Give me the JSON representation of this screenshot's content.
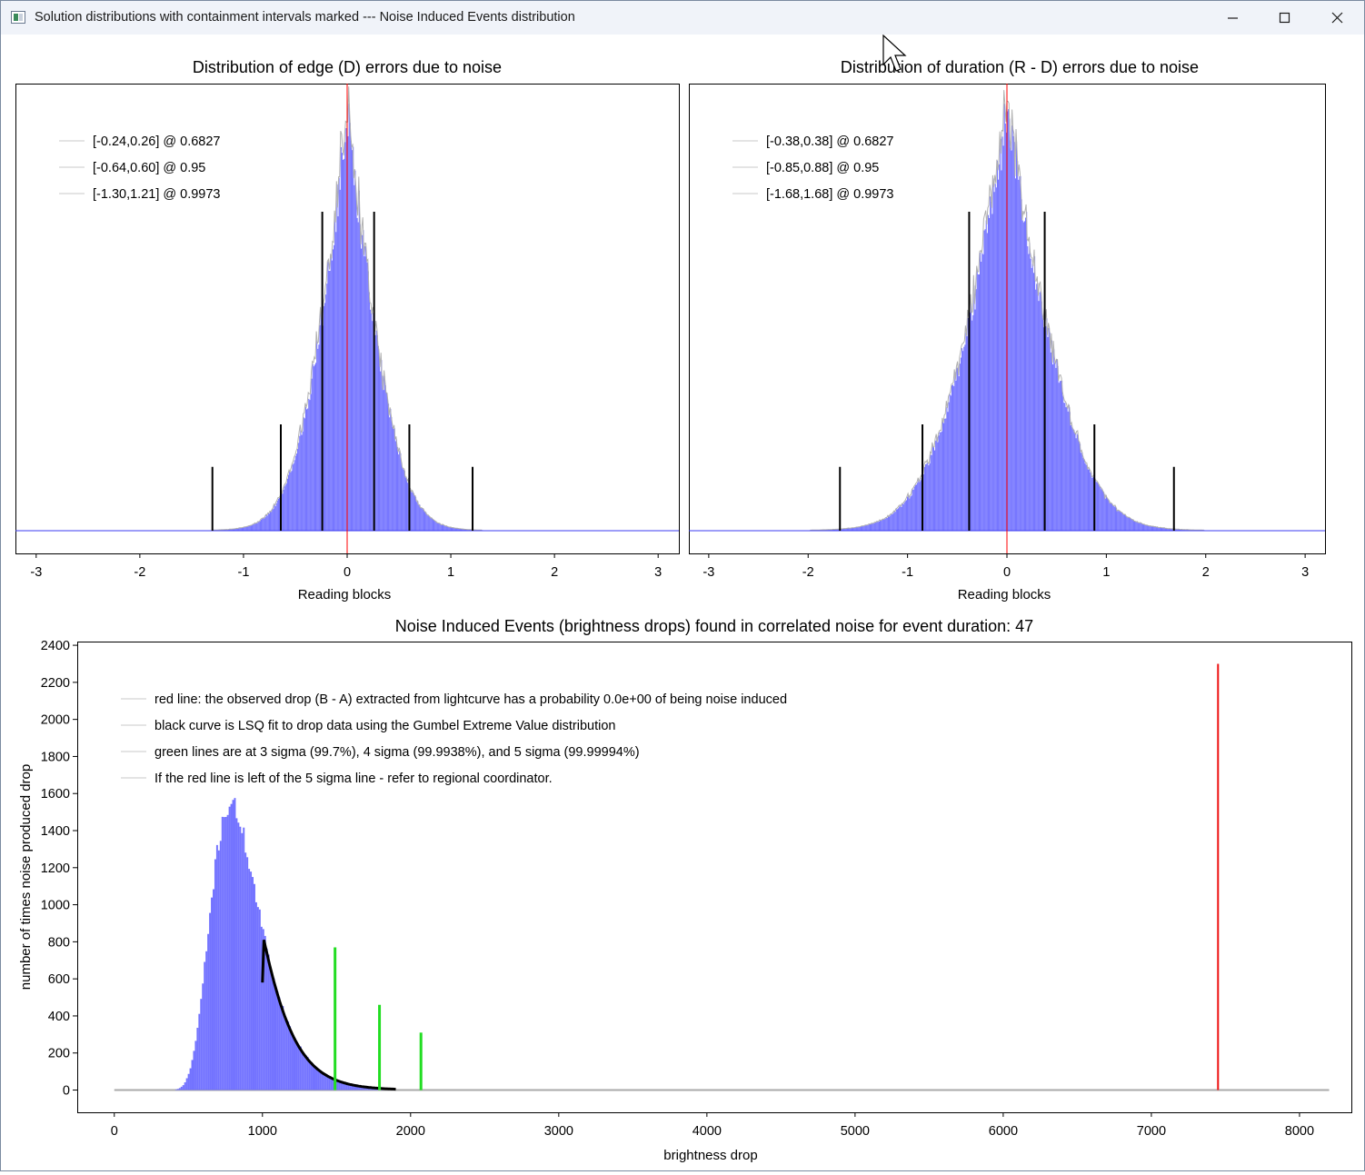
{
  "window": {
    "title": "Solution distributions with containment intervals marked --- Noise Induced Events distribution",
    "controls": {
      "minimize": "minimize",
      "maximize": "maximize",
      "close": "close"
    }
  },
  "chart_data": [
    {
      "type": "bar",
      "title": "Distribution of edge (D) errors due to noise",
      "xlabel": "Reading blocks",
      "ylabel": "",
      "xlim": [
        -3.2,
        3.2
      ],
      "xticks": [
        -3,
        -2,
        -1,
        0,
        1,
        2,
        3
      ],
      "distribution": {
        "center": 0.0,
        "sigma": 0.25,
        "kind": "laplace-like"
      },
      "center_line": 0,
      "legend": [
        "[-0.24,0.26] @ 0.6827",
        "[-0.64,0.60] @ 0.95",
        "[-1.30,1.21] @ 0.9973"
      ],
      "intervals": [
        {
          "lo": -0.24,
          "hi": 0.26,
          "level": 0.6827,
          "marker_height": 0.75
        },
        {
          "lo": -0.64,
          "hi": 0.6,
          "level": 0.95,
          "marker_height": 0.25
        },
        {
          "lo": -1.3,
          "hi": 1.21,
          "level": 0.9973,
          "marker_height": 0.15
        }
      ],
      "colors": {
        "bars": "#6b6bff",
        "outline": "#b0b0b0",
        "center": "#ff0000",
        "marker": "#000000"
      }
    },
    {
      "type": "bar",
      "title": "Distribution of duration (R - D) errors due to noise",
      "xlabel": "Reading blocks",
      "ylabel": "",
      "xlim": [
        -3.2,
        3.2
      ],
      "xticks": [
        -3,
        -2,
        -1,
        0,
        1,
        2,
        3
      ],
      "distribution": {
        "center": 0.0,
        "sigma": 0.38,
        "kind": "laplace-like"
      },
      "center_line": 0,
      "legend": [
        "[-0.38,0.38] @ 0.6827",
        "[-0.85,0.88] @ 0.95",
        "[-1.68,1.68] @ 0.9973"
      ],
      "intervals": [
        {
          "lo": -0.38,
          "hi": 0.38,
          "level": 0.6827,
          "marker_height": 0.75
        },
        {
          "lo": -0.85,
          "hi": 0.88,
          "level": 0.95,
          "marker_height": 0.25
        },
        {
          "lo": -1.68,
          "hi": 1.68,
          "level": 0.9973,
          "marker_height": 0.15
        }
      ],
      "colors": {
        "bars": "#6b6bff",
        "outline": "#b0b0b0",
        "center": "#ff0000",
        "marker": "#000000"
      }
    },
    {
      "type": "bar",
      "title": "Noise Induced Events (brightness drops) found in correlated noise for event duration: 47",
      "xlabel": "brightness drop",
      "ylabel": "number of times noise produced drop",
      "xlim": [
        -250,
        8350
      ],
      "ylim": [
        -120,
        2420
      ],
      "xticks": [
        0,
        1000,
        2000,
        3000,
        4000,
        5000,
        6000,
        7000,
        8000
      ],
      "yticks": [
        0,
        200,
        400,
        600,
        800,
        1000,
        1200,
        1400,
        1600,
        1800,
        2000,
        2200,
        2400
      ],
      "histogram": {
        "peak_x": 780,
        "peak_y": 1540,
        "start_x": 340,
        "end_x": 1900,
        "baseline_end_x": 8200,
        "baseline_start_x": 0
      },
      "gumbel_fit": {
        "x_start": 1000,
        "x_end": 1900,
        "y_start": 580
      },
      "sigma_lines": [
        {
          "label": "3 sigma",
          "x": 1490,
          "height": 770
        },
        {
          "label": "4 sigma",
          "x": 1790,
          "height": 460
        },
        {
          "label": "5 sigma",
          "x": 2070,
          "height": 310
        }
      ],
      "observed_drop": {
        "x": 7450,
        "height": 2300
      },
      "legend": [
        "red line: the observed drop (B - A) extracted from lightcurve has a probability 0.0e+00 of being noise induced",
        "black curve is LSQ fit to drop data using the Gumbel Extreme Value distribution",
        "green lines are at 3 sigma (99.7%), 4 sigma (99.9938%), and 5 sigma (99.99994%)",
        "If the red line is left of the 5 sigma line - refer to regional coordinator."
      ],
      "colors": {
        "bars": "#6b6bff",
        "fit": "#000000",
        "sigma": "#22dd22",
        "observed": "#ee1111",
        "baseline": "#aaaaaa"
      }
    }
  ]
}
